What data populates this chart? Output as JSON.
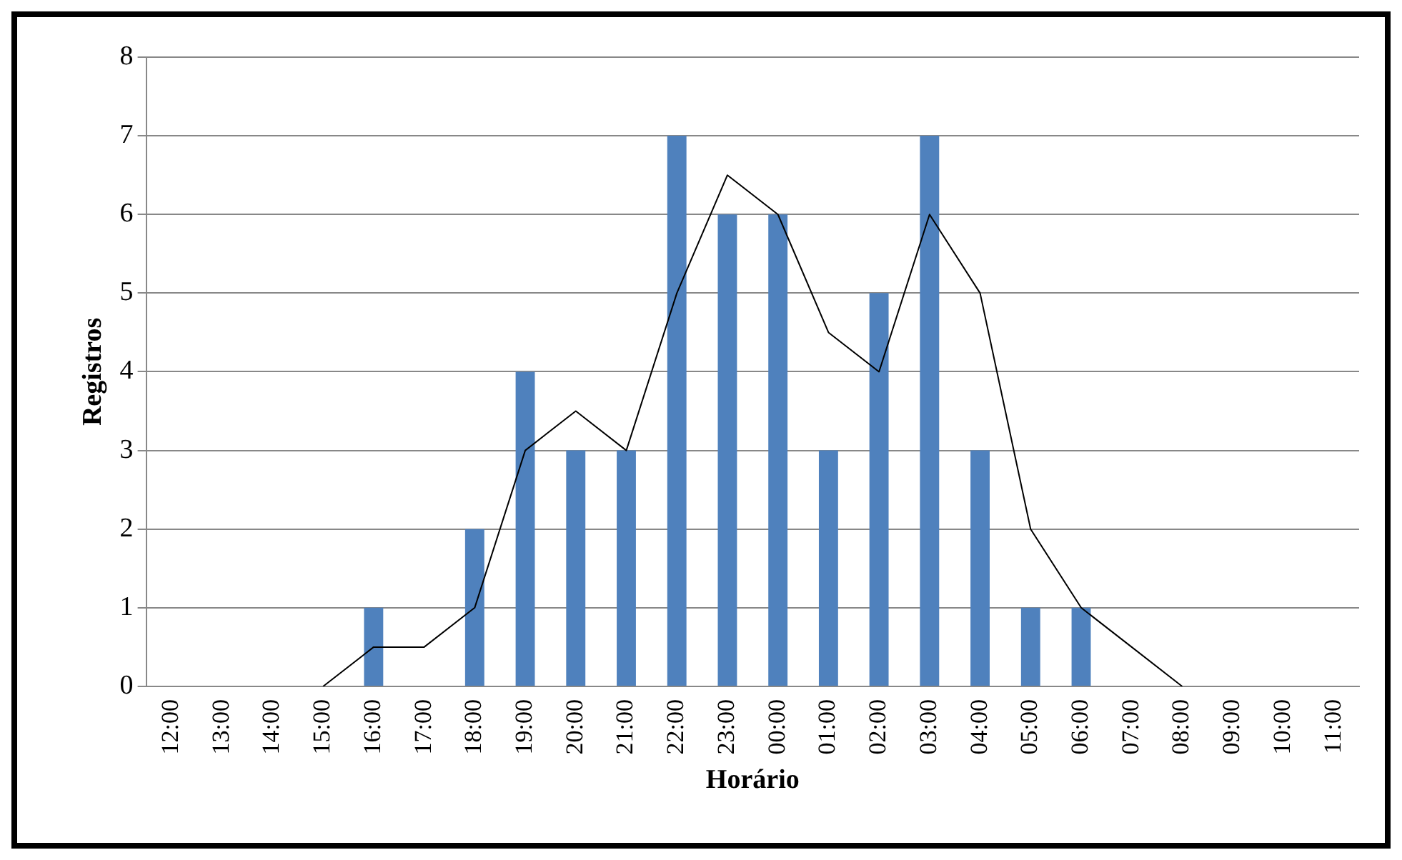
{
  "chart_data": {
    "type": "bar",
    "xlabel": "Horário",
    "ylabel": "Registros",
    "categories": [
      "12:00",
      "13:00",
      "14:00",
      "15:00",
      "16:00",
      "17:00",
      "18:00",
      "19:00",
      "20:00",
      "21:00",
      "22:00",
      "23:00",
      "00:00",
      "01:00",
      "02:00",
      "03:00",
      "04:00",
      "05:00",
      "06:00",
      "07:00",
      "08:00",
      "09:00",
      "10:00",
      "11:00"
    ],
    "series": [
      {
        "color": "#4f81bd",
        "values": [
          0,
          0,
          0,
          0,
          1,
          0,
          2,
          4,
          3,
          3,
          7,
          6,
          6,
          3,
          5,
          7,
          3,
          1,
          1,
          0,
          0,
          0,
          0,
          0
        ]
      },
      {
        "type": "line",
        "color": "#000000",
        "values": [
          null,
          null,
          null,
          0,
          0.5,
          0.5,
          1,
          3,
          3.5,
          3,
          5,
          6.5,
          6,
          4.5,
          4,
          6,
          5,
          2,
          1,
          0.5,
          0,
          null,
          null,
          null
        ]
      }
    ],
    "ylim": [
      0,
      8
    ],
    "yticks": [
      0,
      1,
      2,
      3,
      4,
      5,
      6,
      7,
      8
    ],
    "grid": "y",
    "legend": false,
    "marker": "none",
    "line_style": "solid"
  }
}
